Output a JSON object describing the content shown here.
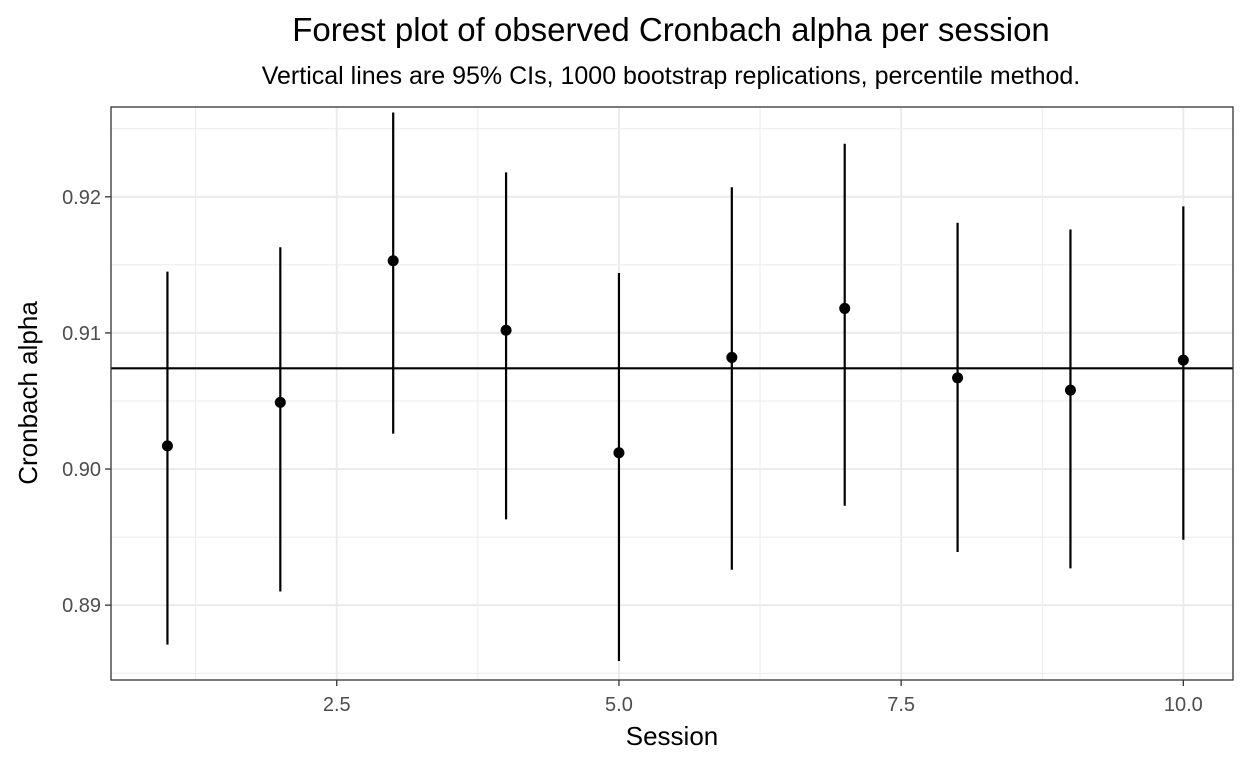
{
  "chart_data": {
    "type": "scatter",
    "title": "Forest plot of observed Cronbach alpha per session",
    "subtitle": "Vertical lines are 95% CIs, 1000 bootstrap replications, percentile method.",
    "xlabel": "Session",
    "ylabel": "Cronbach alpha",
    "xlim": [
      0.5,
      10.44
    ],
    "ylim": [
      0.8845,
      0.9266
    ],
    "x_ticks": [
      2.5,
      5.0,
      7.5,
      10.0
    ],
    "x_tick_labels": [
      "2.5",
      "5.0",
      "7.5",
      "10.0"
    ],
    "y_ticks": [
      0.89,
      0.9,
      0.91,
      0.92
    ],
    "y_tick_labels": [
      "0.89",
      "0.90",
      "0.91",
      "0.92"
    ],
    "reference_line": 0.9074,
    "grid": true,
    "points": [
      {
        "session": 1,
        "alpha": 0.9017,
        "lower": 0.8871,
        "upper": 0.9145
      },
      {
        "session": 2,
        "alpha": 0.9049,
        "lower": 0.891,
        "upper": 0.9163
      },
      {
        "session": 3,
        "alpha": 0.9153,
        "lower": 0.9026,
        "upper": 0.9262
      },
      {
        "session": 4,
        "alpha": 0.9102,
        "lower": 0.8963,
        "upper": 0.9218
      },
      {
        "session": 5,
        "alpha": 0.9012,
        "lower": 0.8859,
        "upper": 0.9144
      },
      {
        "session": 6,
        "alpha": 0.9082,
        "lower": 0.8926,
        "upper": 0.9207
      },
      {
        "session": 7,
        "alpha": 0.9118,
        "lower": 0.8973,
        "upper": 0.9239
      },
      {
        "session": 8,
        "alpha": 0.9067,
        "lower": 0.8939,
        "upper": 0.9181
      },
      {
        "session": 9,
        "alpha": 0.9058,
        "lower": 0.8927,
        "upper": 0.9176
      },
      {
        "session": 10,
        "alpha": 0.908,
        "lower": 0.8948,
        "upper": 0.9193
      }
    ]
  }
}
